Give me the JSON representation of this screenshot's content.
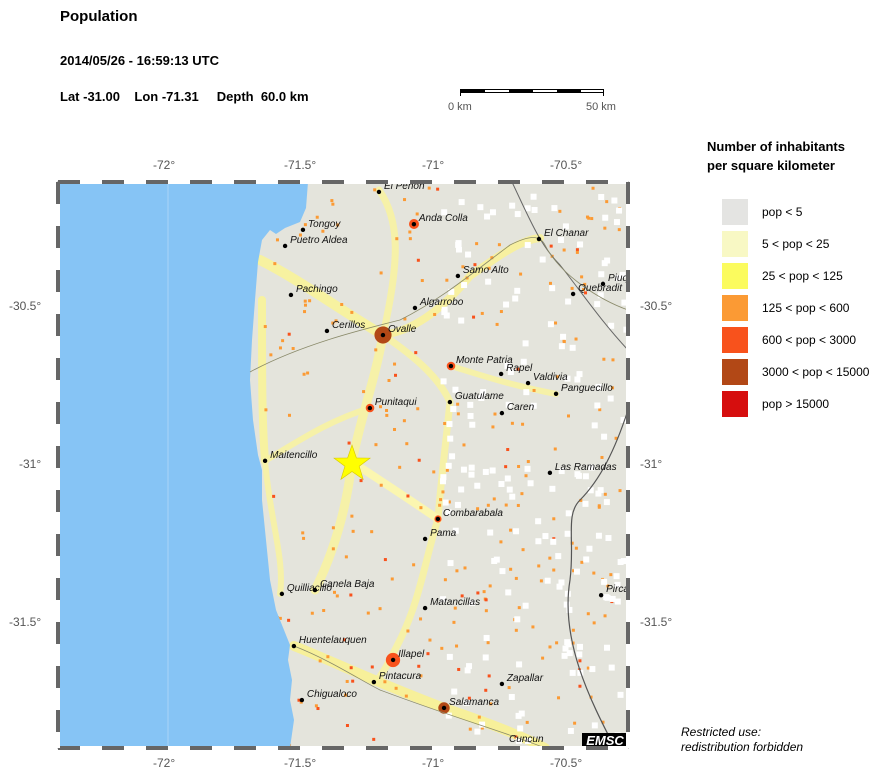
{
  "header": {
    "title": "Population",
    "datetime": "2014/05/26 - 16:59:13 UTC",
    "location": "Lat -31.00    Lon -71.31     Depth  60.0 km"
  },
  "scale_bar": {
    "start_label": "0 km",
    "end_label": "50 km"
  },
  "map": {
    "lon_ticks": [
      "-72°",
      "-71.5°",
      "-71°",
      "-70.5°"
    ],
    "lat_ticks": [
      "-30.5°",
      "-31°",
      "-31.5°"
    ],
    "colors": {
      "ocean": "#86c4f5",
      "land": "#e4e4dc",
      "epicenter": "#ffff00"
    },
    "epicenter": {
      "lat": -31.0,
      "lon": -71.31,
      "icon": "star-icon"
    },
    "cities": [
      {
        "name": "El Penon",
        "lon": -71.209,
        "lat": -30.139
      },
      {
        "name": "Anda Colla",
        "lon": -71.078,
        "lat": -30.241
      },
      {
        "name": "Tongoy",
        "lon": -71.494,
        "lat": -30.259
      },
      {
        "name": "Puetro Aldea",
        "lon": -71.561,
        "lat": -30.31
      },
      {
        "name": "El Chanar",
        "lon": -70.609,
        "lat": -30.288
      },
      {
        "name": "Samo Alto",
        "lon": -70.913,
        "lat": -30.405
      },
      {
        "name": "Piuq",
        "lon": -70.369,
        "lat": -30.43
      },
      {
        "name": "Quebradit",
        "lon": -70.481,
        "lat": -30.462
      },
      {
        "name": "Pachingo",
        "lon": -71.539,
        "lat": -30.465
      },
      {
        "name": "Algarrobo",
        "lon": -71.074,
        "lat": -30.506
      },
      {
        "name": "Cerillos",
        "lon": -71.404,
        "lat": -30.579
      },
      {
        "name": "Ovalle",
        "lon": -71.194,
        "lat": -30.592
      },
      {
        "name": "Monte Patria",
        "lon": -70.939,
        "lat": -30.69
      },
      {
        "name": "Rapel",
        "lon": -70.751,
        "lat": -30.715
      },
      {
        "name": "Valdivia",
        "lon": -70.65,
        "lat": -30.744
      },
      {
        "name": "Panguecillo",
        "lon": -70.545,
        "lat": -30.778
      },
      {
        "name": "Guatulame",
        "lon": -70.943,
        "lat": -30.804
      },
      {
        "name": "Punitaqui",
        "lon": -71.243,
        "lat": -30.823
      },
      {
        "name": "Caren",
        "lon": -70.748,
        "lat": -30.839
      },
      {
        "name": "Maitencillo",
        "lon": -71.636,
        "lat": -30.99
      },
      {
        "name": "Las Ramadas",
        "lon": -70.568,
        "lat": -31.028
      },
      {
        "name": "Combarabala",
        "lon": -70.988,
        "lat": -31.174
      },
      {
        "name": "Pama",
        "lon": -71.036,
        "lat": -31.237
      },
      {
        "name": "Quilliacillo",
        "lon": -71.573,
        "lat": -31.411
      },
      {
        "name": "Canela Baja",
        "lon": -71.449,
        "lat": -31.399
      },
      {
        "name": "Pirca",
        "lon": -70.376,
        "lat": -31.415
      },
      {
        "name": "Matancillas",
        "lon": -71.036,
        "lat": -31.456
      },
      {
        "name": "Huentelauquen",
        "lon": -71.528,
        "lat": -31.576
      },
      {
        "name": "Illapel",
        "lon": -71.156,
        "lat": -31.62
      },
      {
        "name": "Pintacura",
        "lon": -71.228,
        "lat": -31.69
      },
      {
        "name": "Zapallar",
        "lon": -70.748,
        "lat": -31.696
      },
      {
        "name": "Chigualoco",
        "lon": -71.498,
        "lat": -31.747
      },
      {
        "name": "Salamanca",
        "lon": -70.965,
        "lat": -31.772
      },
      {
        "name": "Cuncun",
        "lon": -70.74,
        "lat": -31.89
      }
    ],
    "logo": "EMSC"
  },
  "legend": {
    "title_line1": "Number of inhabitants",
    "title_line2": "per square kilometer",
    "items": [
      {
        "label": "pop < 5",
        "color": "#e4e4e2"
      },
      {
        "label": "5 < pop < 25",
        "color": "#f8f8c4"
      },
      {
        "label": "25 < pop < 125",
        "color": "#fbfb5e"
      },
      {
        "label": "125 < pop < 600",
        "color": "#fb9a34"
      },
      {
        "label": "600 < pop < 3000",
        "color": "#f8521c"
      },
      {
        "label": "3000 < pop < 15000",
        "color": "#b24816"
      },
      {
        "label": "pop > 15000",
        "color": "#d60e0e"
      }
    ]
  },
  "notice": {
    "line1": "Restricted use:",
    "line2": "redistribution forbidden"
  }
}
